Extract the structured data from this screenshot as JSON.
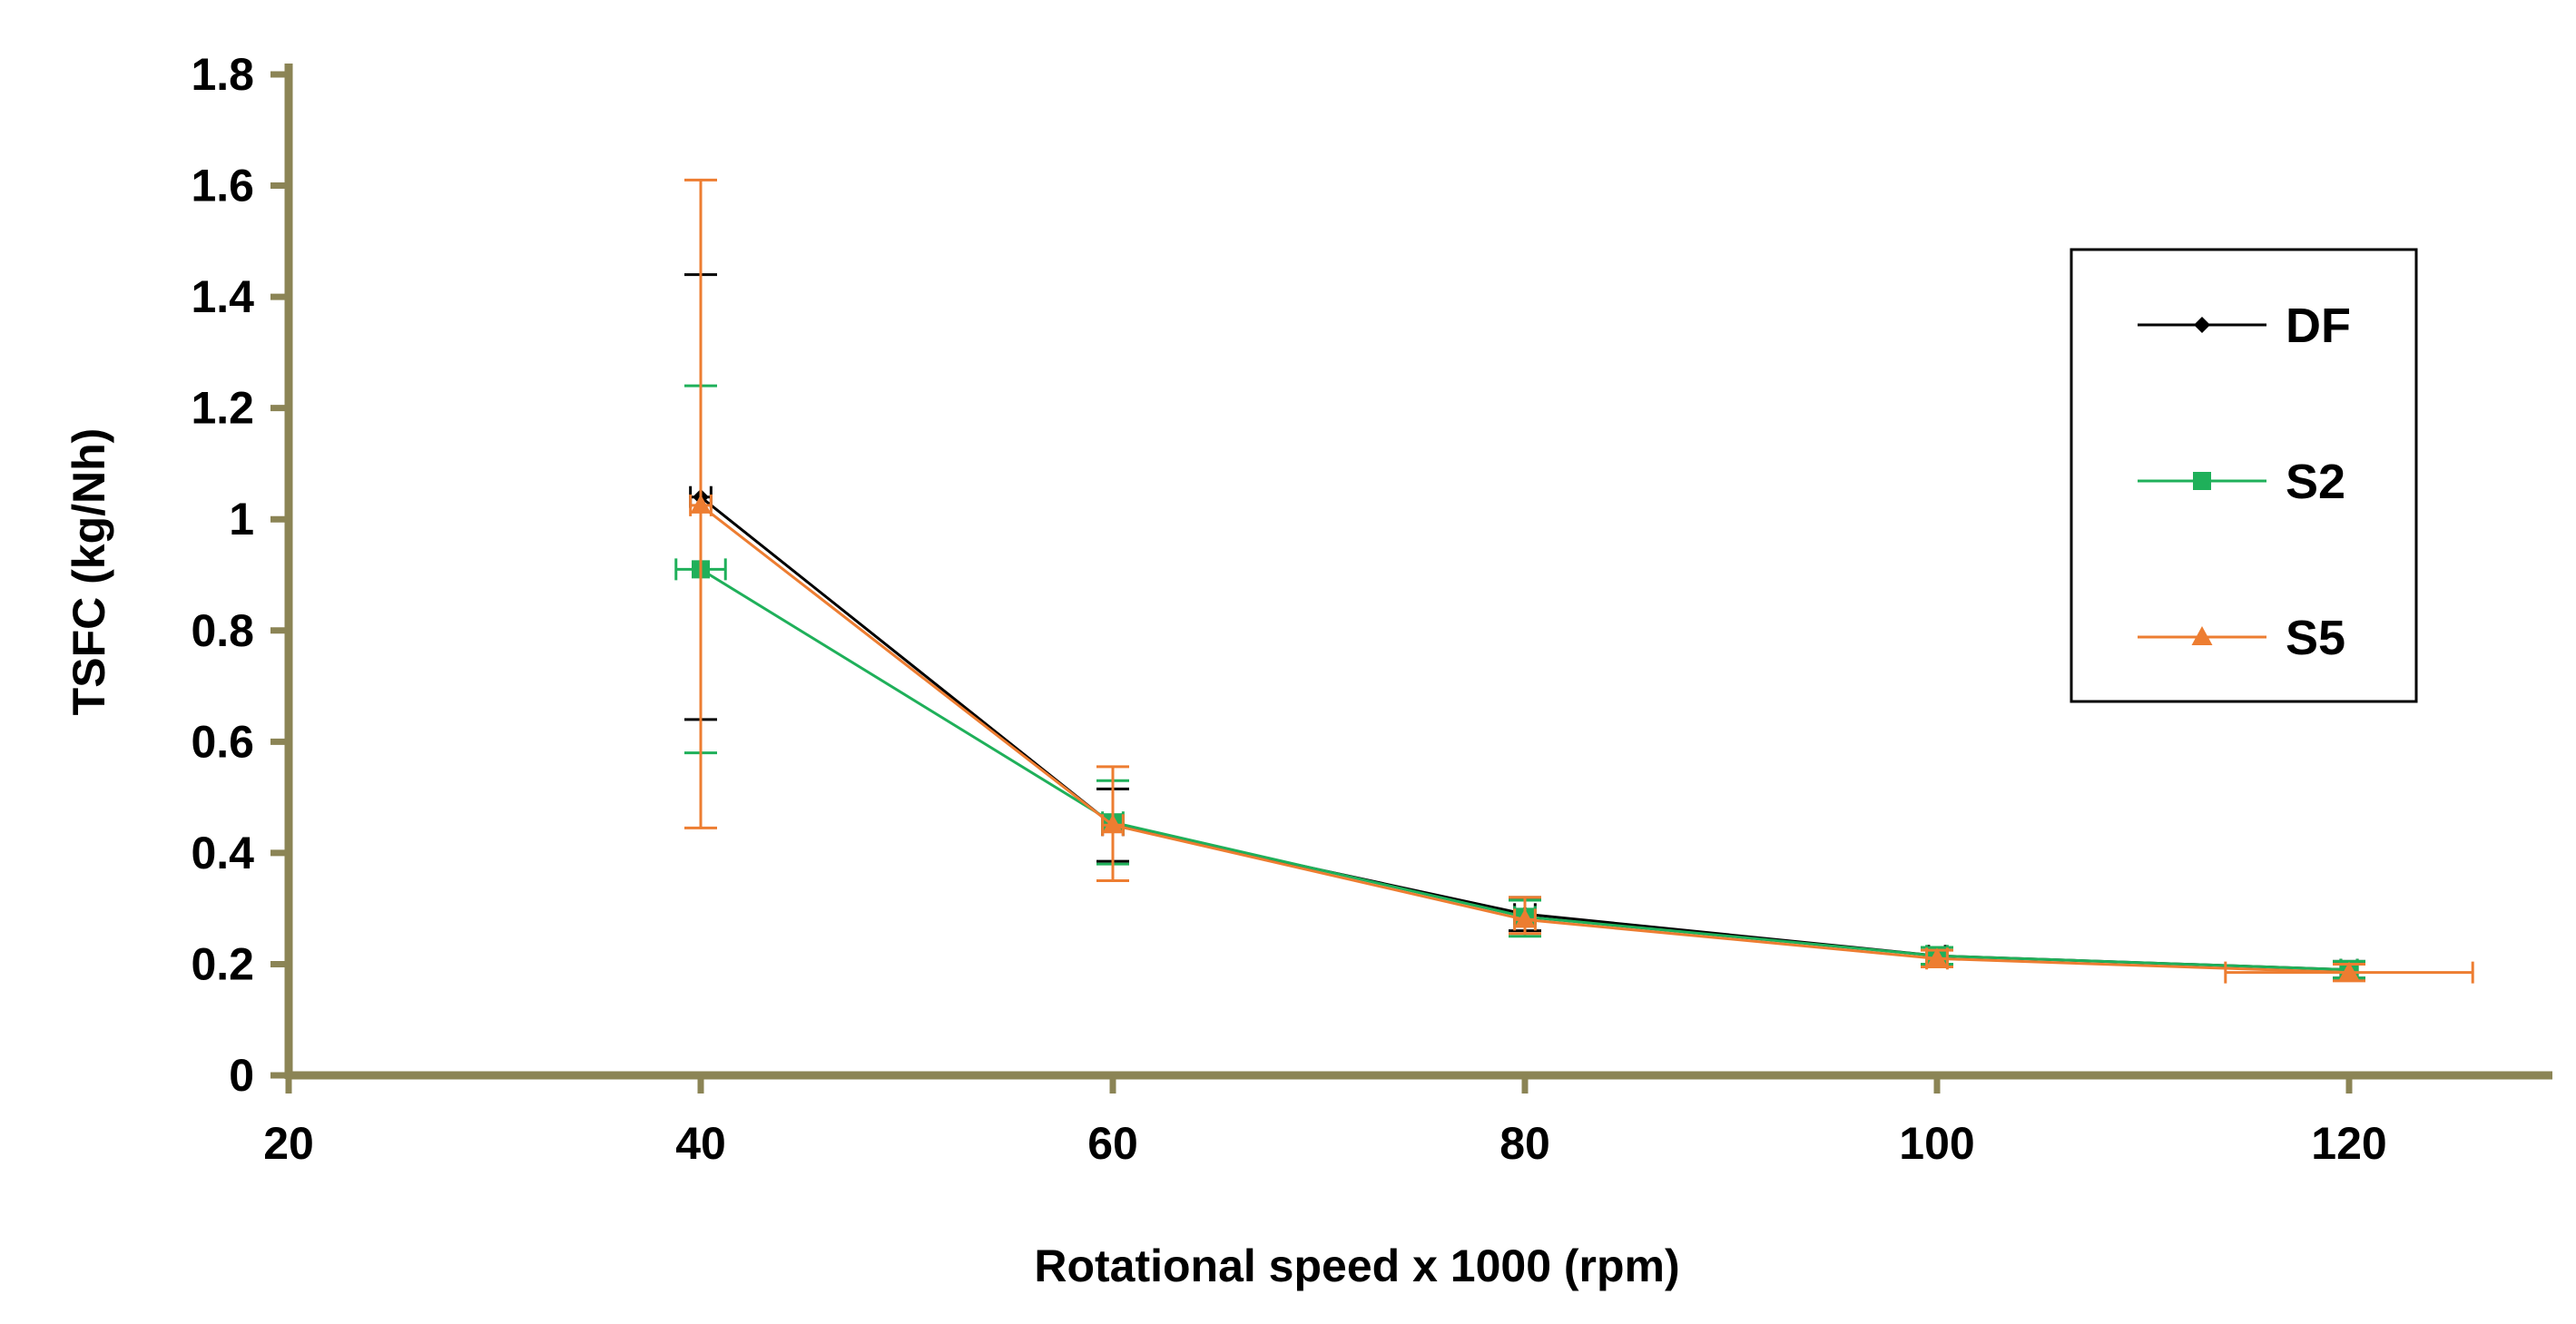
{
  "chart_data": {
    "type": "line",
    "title": "",
    "xlabel": "Rotational speed x 1000 (rpm)",
    "ylabel": "TSFC (kg/Nh)",
    "xlim": [
      20,
      130
    ],
    "ylim": [
      0,
      1.8
    ],
    "xticks": [
      20,
      40,
      60,
      80,
      100,
      120
    ],
    "yticks": [
      0,
      0.2,
      0.4,
      0.6,
      0.8,
      1,
      1.2,
      1.4,
      1.6,
      1.8
    ],
    "grid": false,
    "legend_position": "right",
    "axis_color": "#8b8455",
    "series": [
      {
        "name": "DF",
        "color": "#000000",
        "marker": "diamond",
        "x": [
          40,
          60,
          80,
          100,
          120
        ],
        "y": [
          1.04,
          0.45,
          0.29,
          0.215,
          0.19
        ],
        "yerr_low": [
          0.64,
          0.385,
          0.26,
          0.2,
          0.175
        ],
        "yerr_high": [
          1.44,
          0.515,
          0.32,
          0.23,
          0.205
        ],
        "xerr": [
          0.5,
          0.5,
          0.5,
          0.4,
          0.4
        ]
      },
      {
        "name": "S2",
        "color": "#1fb05a",
        "marker": "square",
        "x": [
          40,
          60,
          80,
          100,
          120
        ],
        "y": [
          0.91,
          0.455,
          0.285,
          0.215,
          0.19
        ],
        "yerr_low": [
          0.58,
          0.38,
          0.25,
          0.2,
          0.175
        ],
        "yerr_high": [
          1.24,
          0.53,
          0.315,
          0.23,
          0.205
        ],
        "xerr": [
          1.2,
          0.5,
          0.5,
          0.5,
          0.4
        ]
      },
      {
        "name": "S5",
        "color": "#ed7d31",
        "marker": "triangle",
        "x": [
          40,
          60,
          80,
          100,
          120
        ],
        "y": [
          1.025,
          0.45,
          0.28,
          0.21,
          0.185
        ],
        "yerr_low": [
          0.445,
          0.35,
          0.255,
          0.195,
          0.17
        ],
        "yerr_high": [
          1.61,
          0.555,
          0.32,
          0.225,
          0.2
        ],
        "xerr": [
          0.5,
          0.5,
          0.5,
          0.5,
          6
        ]
      }
    ]
  }
}
